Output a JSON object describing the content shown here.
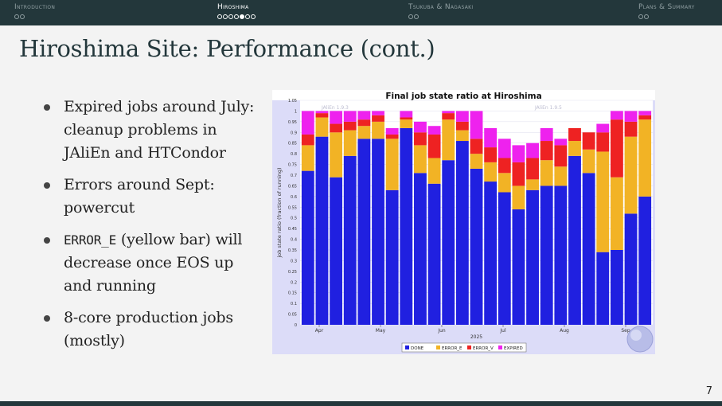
{
  "nav": {
    "sections": [
      {
        "label": "Introduction",
        "dots": 2,
        "filled": -1,
        "active": false
      },
      {
        "label": "Hiroshima",
        "dots": 7,
        "filled": 4,
        "active": true
      },
      {
        "label": "Tsukuba & Nagasaki",
        "dots": 2,
        "filled": -1,
        "active": false
      },
      {
        "label": "Plans & Summary",
        "dots": 2,
        "filled": -1,
        "active": false
      }
    ]
  },
  "slide": {
    "title": "Hiroshima Site: Performance (cont.)",
    "page_number": "7",
    "bullets": [
      {
        "text": "Expired jobs around July: cleanup problems in JAliEn and HTCondor"
      },
      {
        "text": "Errors around Sept: powercut"
      },
      {
        "code": "ERROR_E",
        "text": " (yellow bar) will decrease once EOS up and running"
      },
      {
        "text": "8-core production jobs (mostly)"
      }
    ]
  },
  "chart_data": {
    "type": "bar",
    "stacked": true,
    "title": "Final job state ratio at Hiroshima",
    "xlabel": "2025",
    "ylabel": "job state ratio (fraction of running)",
    "ylim": [
      0,
      1.05
    ],
    "yticks": [
      "0",
      "0.05",
      "0.1",
      "0.15",
      "0.2",
      "0.25",
      "0.3",
      "0.35",
      "0.4",
      "0.45",
      "0.5",
      "0.55",
      "0.6",
      "0.65",
      "0.7",
      "0.75",
      "0.8",
      "0.85",
      "0.9",
      "0.95",
      "1",
      "1.05"
    ],
    "month_labels": [
      "Apr",
      "May",
      "Jun",
      "Jul",
      "Aug",
      "Sep"
    ],
    "annotations": [
      "JAliEn 1.9.3",
      "JAliEn 1.9.5"
    ],
    "colors": {
      "DONE": "#2020e0",
      "ERROR_E": "#f2b325",
      "ERROR_V": "#ee2222",
      "EXPIRED": "#ee22ee",
      "bg": "#dcdcf8"
    },
    "series": [
      {
        "name": "DONE",
        "values": [
          0.72,
          0.88,
          0.69,
          0.79,
          0.87,
          0.87,
          0.63,
          0.92,
          0.71,
          0.66,
          0.77,
          0.86,
          0.73,
          0.67,
          0.62,
          0.54,
          0.63,
          0.65,
          0.65,
          0.79,
          0.71,
          0.34,
          0.35,
          0.52,
          0.6
        ]
      },
      {
        "name": "ERROR_E",
        "values": [
          0.12,
          0.09,
          0.21,
          0.12,
          0.06,
          0.08,
          0.24,
          0.04,
          0.13,
          0.12,
          0.19,
          0.05,
          0.07,
          0.09,
          0.09,
          0.11,
          0.05,
          0.12,
          0.09,
          0.07,
          0.11,
          0.47,
          0.34,
          0.36,
          0.36
        ]
      },
      {
        "name": "ERROR_V",
        "values": [
          0.05,
          0.02,
          0.04,
          0.04,
          0.03,
          0.03,
          0.02,
          0.01,
          0.06,
          0.11,
          0.03,
          0.04,
          0.07,
          0.07,
          0.07,
          0.11,
          0.1,
          0.09,
          0.1,
          0.06,
          0.08,
          0.09,
          0.27,
          0.07,
          0.02
        ]
      },
      {
        "name": "EXPIRED",
        "values": [
          0.11,
          0.01,
          0.06,
          0.05,
          0.04,
          0.02,
          0.03,
          0.03,
          0.05,
          0.04,
          0.01,
          0.05,
          0.13,
          0.09,
          0.09,
          0.08,
          0.07,
          0.06,
          0.03,
          0.0,
          0.0,
          0.04,
          0.04,
          0.05,
          0.02
        ]
      }
    ]
  }
}
